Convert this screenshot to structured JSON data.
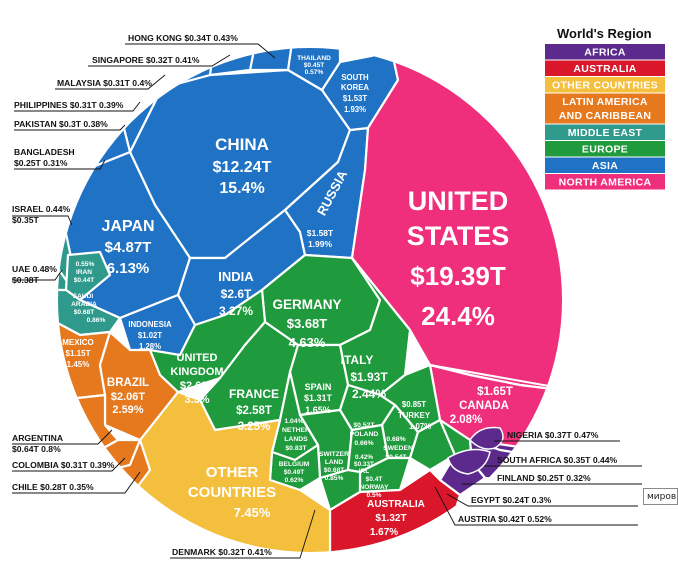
{
  "legend": {
    "title": "World's Region",
    "items": [
      {
        "name": "AFRICA",
        "color": "#5b2a8c"
      },
      {
        "name": "AUSTRALIA",
        "color": "#d9162a"
      },
      {
        "name": "OTHER COUNTRIES",
        "color": "#f4bf3c"
      },
      {
        "name": "LATIN AMERICA\nAND CARIBBEAN",
        "color": "#e6781e"
      },
      {
        "name": "MIDDLE EAST",
        "color": "#2f9a8c"
      },
      {
        "name": "EUROPE",
        "color": "#1f9a3c"
      },
      {
        "name": "ASIA",
        "color": "#1f72c4"
      },
      {
        "name": "NORTH AMERICA",
        "color": "#ef2f7c"
      }
    ]
  },
  "tooltip_text": "миров",
  "chart_data": {
    "type": "voronoi-treemap",
    "title": "",
    "regions": [
      "AFRICA",
      "AUSTRALIA",
      "OTHER COUNTRIES",
      "LATIN AMERICA AND CARIBBEAN",
      "MIDDLE EAST",
      "EUROPE",
      "ASIA",
      "NORTH AMERICA"
    ],
    "cells": [
      {
        "country": "UNITED STATES",
        "gdp": "$19.39T",
        "share": "24.4%",
        "gdp_trillions": 19.39,
        "share_pct": 24.4,
        "region": "NORTH AMERICA"
      },
      {
        "country": "CANADA",
        "gdp": "$1.65T",
        "share": "2.08%",
        "gdp_trillions": 1.65,
        "share_pct": 2.08,
        "region": "NORTH AMERICA"
      },
      {
        "country": "CHINA",
        "gdp": "$12.24T",
        "share": "15.4%",
        "gdp_trillions": 12.24,
        "share_pct": 15.4,
        "region": "ASIA"
      },
      {
        "country": "JAPAN",
        "gdp": "$4.87T",
        "share": "6.13%",
        "gdp_trillions": 4.87,
        "share_pct": 6.13,
        "region": "ASIA"
      },
      {
        "country": "INDIA",
        "gdp": "$2.6T",
        "share": "3.27%",
        "gdp_trillions": 2.6,
        "share_pct": 3.27,
        "region": "ASIA"
      },
      {
        "country": "RUSSIA",
        "gdp": "$1.58T",
        "share": "1.99%",
        "gdp_trillions": 1.58,
        "share_pct": 1.99,
        "region": "ASIA"
      },
      {
        "country": "SOUTH KOREA",
        "gdp": "$1.53T",
        "share": "1.93%",
        "gdp_trillions": 1.53,
        "share_pct": 1.93,
        "region": "ASIA"
      },
      {
        "country": "INDONESIA",
        "gdp": "$1.02T",
        "share": "1.28%",
        "gdp_trillions": 1.02,
        "share_pct": 1.28,
        "region": "ASIA"
      },
      {
        "country": "THAILAND",
        "gdp": "$0.45T",
        "share": "0.57%",
        "gdp_trillions": 0.45,
        "share_pct": 0.57,
        "region": "ASIA"
      },
      {
        "country": "HONG KONG",
        "gdp": "$0.34T",
        "share": "0.43%",
        "gdp_trillions": 0.34,
        "share_pct": 0.43,
        "region": "ASIA"
      },
      {
        "country": "SINGAPORE",
        "gdp": "$0.32T",
        "share": "0.41%",
        "gdp_trillions": 0.32,
        "share_pct": 0.41,
        "region": "ASIA"
      },
      {
        "country": "MALAYSIA",
        "gdp": "$0.31T",
        "share": "0.4%",
        "gdp_trillions": 0.31,
        "share_pct": 0.4,
        "region": "ASIA"
      },
      {
        "country": "PHILIPPINES",
        "gdp": "$0.31T",
        "share": "0.39%",
        "gdp_trillions": 0.31,
        "share_pct": 0.39,
        "region": "ASIA"
      },
      {
        "country": "PAKISTAN",
        "gdp": "$0.3T",
        "share": "0.38%",
        "gdp_trillions": 0.3,
        "share_pct": 0.38,
        "region": "ASIA"
      },
      {
        "country": "BANGLADESH",
        "gdp": "$0.25T",
        "share": "0.31%",
        "gdp_trillions": 0.25,
        "share_pct": 0.31,
        "region": "ASIA"
      },
      {
        "country": "GERMANY",
        "gdp": "$3.68T",
        "share": "4.63%",
        "gdp_trillions": 3.68,
        "share_pct": 4.63,
        "region": "EUROPE"
      },
      {
        "country": "UNITED KINGDOM",
        "gdp": "$2.62T",
        "share": "3.3%",
        "gdp_trillions": 2.62,
        "share_pct": 3.3,
        "region": "EUROPE"
      },
      {
        "country": "FRANCE",
        "gdp": "$2.58T",
        "share": "3.25%",
        "gdp_trillions": 2.58,
        "share_pct": 3.25,
        "region": "EUROPE"
      },
      {
        "country": "ITALY",
        "gdp": "$1.93T",
        "share": "2.44%",
        "gdp_trillions": 1.93,
        "share_pct": 2.44,
        "region": "EUROPE"
      },
      {
        "country": "SPAIN",
        "gdp": "$1.31T",
        "share": "1.65%",
        "gdp_trillions": 1.31,
        "share_pct": 1.65,
        "region": "EUROPE"
      },
      {
        "country": "NETHERLANDS",
        "gdp": "$0.83T",
        "share": "1.04%",
        "gdp_trillions": 0.83,
        "share_pct": 1.04,
        "region": "EUROPE"
      },
      {
        "country": "TURKEY",
        "gdp": "$0.85T",
        "share": "1.07%",
        "gdp_trillions": 0.85,
        "share_pct": 1.07,
        "region": "EUROPE"
      },
      {
        "country": "SWITZERLAND",
        "gdp": "$0.68T",
        "share": "0.85%",
        "gdp_trillions": 0.68,
        "share_pct": 0.85,
        "region": "EUROPE"
      },
      {
        "country": "POLAND",
        "gdp": "$0.52T",
        "share": "0.66%",
        "gdp_trillions": 0.52,
        "share_pct": 0.66,
        "region": "EUROPE"
      },
      {
        "country": "SWEDEN",
        "gdp": "$0.54T",
        "share": "0.68%",
        "gdp_trillions": 0.54,
        "share_pct": 0.68,
        "region": "EUROPE"
      },
      {
        "country": "BELGIUM",
        "gdp": "$0.49T",
        "share": "0.62%",
        "gdp_trillions": 0.49,
        "share_pct": 0.62,
        "region": "EUROPE"
      },
      {
        "country": "IRL",
        "gdp": "$0.33T",
        "share": "0.42%",
        "gdp_trillions": 0.33,
        "share_pct": 0.42,
        "region": "EUROPE"
      },
      {
        "country": "NORWAY",
        "gdp": "$0.4T",
        "share": "0.5%",
        "gdp_trillions": 0.4,
        "share_pct": 0.5,
        "region": "EUROPE"
      },
      {
        "country": "AUSTRIA",
        "gdp": "$0.42T",
        "share": "0.52%",
        "gdp_trillions": 0.42,
        "share_pct": 0.52,
        "region": "EUROPE"
      },
      {
        "country": "DENMARK",
        "gdp": "$0.32T",
        "share": "0.41%",
        "gdp_trillions": 0.32,
        "share_pct": 0.41,
        "region": "EUROPE"
      },
      {
        "country": "FINLAND",
        "gdp": "$0.25T",
        "share": "0.32%",
        "gdp_trillions": 0.25,
        "share_pct": 0.32,
        "region": "EUROPE"
      },
      {
        "country": "ISRAEL",
        "gdp": "$0.35T",
        "share": "0.44%",
        "gdp_trillions": 0.35,
        "share_pct": 0.44,
        "region": "MIDDLE EAST"
      },
      {
        "country": "UAE",
        "gdp": "$0.38T",
        "share": "0.48%",
        "gdp_trillions": 0.38,
        "share_pct": 0.48,
        "region": "MIDDLE EAST"
      },
      {
        "country": "IRAN",
        "gdp": "$0.44T",
        "share": "0.55%",
        "gdp_trillions": 0.44,
        "share_pct": 0.55,
        "region": "MIDDLE EAST"
      },
      {
        "country": "SAUDI ARABIA",
        "gdp": "$0.68T",
        "share": "0.86%",
        "gdp_trillions": 0.68,
        "share_pct": 0.86,
        "region": "MIDDLE EAST"
      },
      {
        "country": "BRAZIL",
        "gdp": "$2.06T",
        "share": "2.59%",
        "gdp_trillions": 2.06,
        "share_pct": 2.59,
        "region": "LATIN AMERICA AND CARIBBEAN"
      },
      {
        "country": "MEXICO",
        "gdp": "$1.15T",
        "share": "1.45%",
        "gdp_trillions": 1.15,
        "share_pct": 1.45,
        "region": "LATIN AMERICA AND CARIBBEAN"
      },
      {
        "country": "ARGENTINA",
        "gdp": "$0.64T",
        "share": "0.8%",
        "gdp_trillions": 0.64,
        "share_pct": 0.8,
        "region": "LATIN AMERICA AND CARIBBEAN"
      },
      {
        "country": "COLOMBIA",
        "gdp": "$0.31T",
        "share": "0.39%",
        "gdp_trillions": 0.31,
        "share_pct": 0.39,
        "region": "LATIN AMERICA AND CARIBBEAN"
      },
      {
        "country": "CHILE",
        "gdp": "$0.28T",
        "share": "0.35%",
        "gdp_trillions": 0.28,
        "share_pct": 0.35,
        "region": "LATIN AMERICA AND CARIBBEAN"
      },
      {
        "country": "AUSTRALIA",
        "gdp": "$1.32T",
        "share": "1.67%",
        "gdp_trillions": 1.32,
        "share_pct": 1.67,
        "region": "AUSTRALIA"
      },
      {
        "country": "NIGERIA",
        "gdp": "$0.37T",
        "share": "0.47%",
        "gdp_trillions": 0.37,
        "share_pct": 0.47,
        "region": "AFRICA"
      },
      {
        "country": "SOUTH AFRICA",
        "gdp": "$0.35T",
        "share": "0.44%",
        "gdp_trillions": 0.35,
        "share_pct": 0.44,
        "region": "AFRICA"
      },
      {
        "country": "EGYPT",
        "gdp": "$0.24T",
        "share": "0.3%",
        "gdp_trillions": 0.24,
        "share_pct": 0.3,
        "region": "AFRICA"
      },
      {
        "country": "OTHER COUNTRIES",
        "gdp": "",
        "share": "7.45%",
        "gdp_trillions": null,
        "share_pct": 7.45,
        "region": "OTHER COUNTRIES"
      }
    ]
  },
  "inside_labels": {
    "us": {
      "name1": "UNITED",
      "name2": "STATES",
      "value": "$19.39T",
      "share": "24.4%"
    },
    "china": {
      "name": "CHINA",
      "value": "$12.24T",
      "share": "15.4%"
    },
    "japan": {
      "name": "JAPAN",
      "value": "$4.87T",
      "share": "6.13%"
    },
    "india": {
      "name": "INDIA",
      "value": "$2.6T",
      "share": "3.27%"
    },
    "russia": {
      "name": "RUSSIA",
      "value": "$1.58T",
      "share": "1.99%"
    },
    "south_korea": {
      "name1": "SOUTH",
      "name2": "KOREA",
      "value": "$1.53T",
      "share": "1.93%"
    },
    "thailand": {
      "name": "THAILAND",
      "value": "$0.45T",
      "share": "0.57%"
    },
    "indonesia": {
      "name": "INDONESIA",
      "value": "$1.02T",
      "share": "1.28%"
    },
    "germany": {
      "name": "GERMANY",
      "value": "$3.68T",
      "share": "4.63%"
    },
    "uk": {
      "name1": "UNITED",
      "name2": "KINGDOM",
      "value": "$2.62T",
      "share": "3.3%"
    },
    "france": {
      "name": "FRANCE",
      "value": "$2.58T",
      "share": "3.25%"
    },
    "italy": {
      "name": "ITALY",
      "value": "$1.93T",
      "share": "2.44%"
    },
    "spain": {
      "name": "SPAIN",
      "value": "$1.31T",
      "share": "1.65%"
    },
    "netherlands": {
      "share": "1.04%",
      "name1": "NETHER",
      "name2": "LANDS",
      "value": "$0.83T"
    },
    "belgium": {
      "name": "BELGIUM",
      "value": "$0.49T",
      "share": "0.62%"
    },
    "switzerland": {
      "name1": "SWITZER",
      "name2": "LAND",
      "value": "$0.68T",
      "share": "0.85%"
    },
    "poland": {
      "value": "$0.52T",
      "name": "POLAND",
      "share": "0.66%"
    },
    "irl": {
      "share": "0.42%",
      "value": "$0.33T",
      "name": "IRL"
    },
    "norway": {
      "value": "$0.4T",
      "name": "NORWAY",
      "share": "0.5%"
    },
    "sweden": {
      "share": "0.68%",
      "name": "SWEDEN",
      "value": "$0.54T"
    },
    "turkey": {
      "value": "$0.85T",
      "name": "TURKEY",
      "share": "1.07%"
    },
    "canada": {
      "value": "$1.65T",
      "name": "CANADA",
      "share": "2.08%"
    },
    "other": {
      "name1": "OTHER",
      "name2": "COUNTRIES",
      "share": "7.45%"
    },
    "australia": {
      "name": "AUSTRALIA",
      "value": "$1.32T",
      "share": "1.67%"
    },
    "brazil": {
      "name": "BRAZIL",
      "value": "$2.06T",
      "share": "2.59%"
    },
    "mexico": {
      "name": "MEXICO",
      "value": "$1.15T",
      "share": "1.45%"
    },
    "iran": {
      "share": "0.55%",
      "name": "IRAN",
      "value": "$0.44T"
    },
    "saudi": {
      "name1": "SAUDI",
      "name2": "ARABIA",
      "value": "$0.68T",
      "share": "0.86%"
    }
  },
  "callouts": {
    "hong_kong": "HONG KONG $0.34T 0.43%",
    "singapore": "SINGAPORE $0.32T 0.41%",
    "malaysia": "MALAYSIA $0.31T  0.4%",
    "philippines": "PHILIPPINES $0.31T 0.39%",
    "pakistan": "PAKISTAN $0.3T 0.38%",
    "bangladesh1": "BANGLADESH",
    "bangladesh2": "$0.25T 0.31%",
    "israel1": "ISRAEL 0.44%",
    "israel2": "$0.35T",
    "uae1": "UAE 0.48%",
    "uae2": "$0.38T",
    "argentina1": "ARGENTINA",
    "argentina2": "$0.64T 0.8%",
    "colombia": "COLOMBIA $0.31T 0.39%",
    "chile": "CHILE $0.28T 0.35%",
    "denmark": "DENMARK $0.32T 0.41%",
    "nigeria": "NIGERIA $0.37T 0.47%",
    "south_africa": "SOUTH AFRICA $0.35T 0.44%",
    "finland": "FINLAND $0.25T 0.32%",
    "egypt": "EGYPT $0.24T  0.3%",
    "austria": "AUSTRIA $0.42T  0.52%"
  }
}
